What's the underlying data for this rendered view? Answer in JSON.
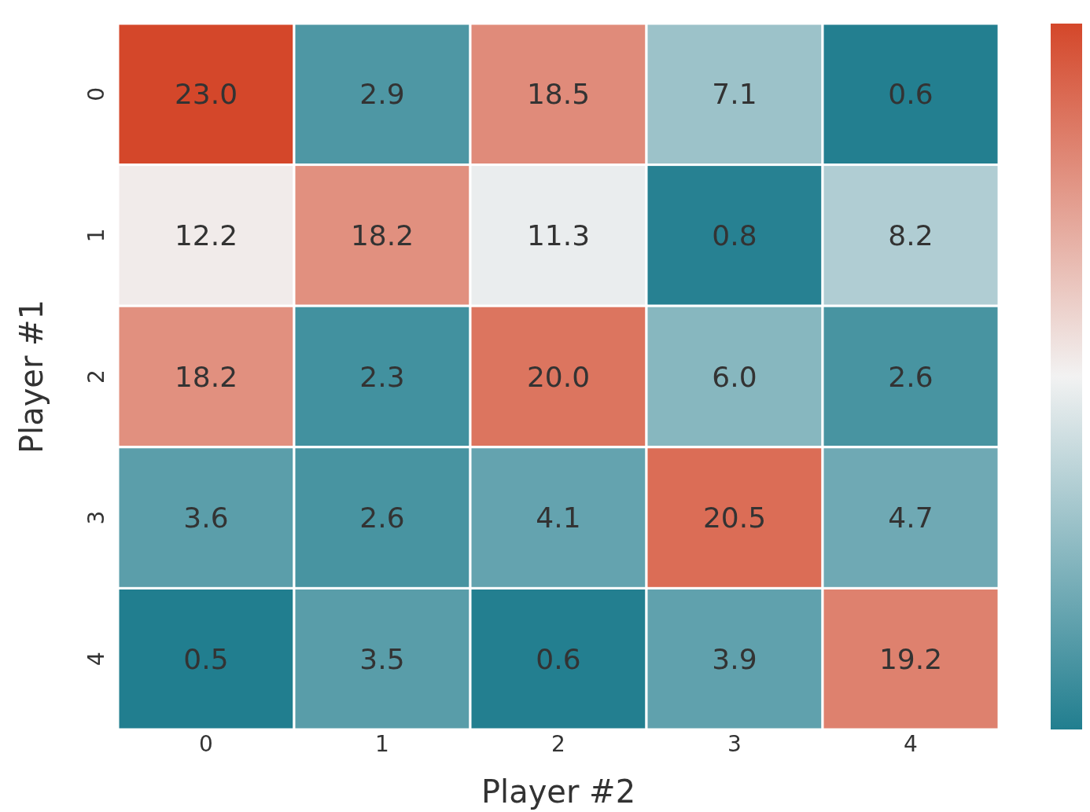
{
  "chart_data": {
    "type": "heatmap",
    "xlabel": "Player #2",
    "ylabel": "Player #1",
    "categories": [
      "0",
      "1",
      "2",
      "3",
      "4"
    ],
    "y_categories": [
      "0",
      "1",
      "2",
      "3",
      "4"
    ],
    "cells": [
      [
        23.0,
        2.9,
        18.5,
        7.1,
        0.6
      ],
      [
        12.2,
        18.2,
        11.3,
        0.8,
        8.2
      ],
      [
        18.2,
        2.3,
        20.0,
        6.0,
        2.6
      ],
      [
        3.6,
        2.6,
        4.1,
        20.5,
        4.7
      ],
      [
        0.5,
        3.5,
        0.6,
        3.9,
        19.2
      ]
    ],
    "cell_labels": [
      [
        "23.0",
        "2.9",
        "18.5",
        "7.1",
        "0.6"
      ],
      [
        "12.2",
        "18.2",
        "11.3",
        "0.8",
        "8.2"
      ],
      [
        "18.2",
        "2.3",
        "20.0",
        "6.0",
        "2.6"
      ],
      [
        "3.6",
        "2.6",
        "4.1",
        "20.5",
        "4.7"
      ],
      [
        "0.5",
        "3.5",
        "0.6",
        "3.9",
        "19.2"
      ]
    ],
    "data_labels": true
  }
}
